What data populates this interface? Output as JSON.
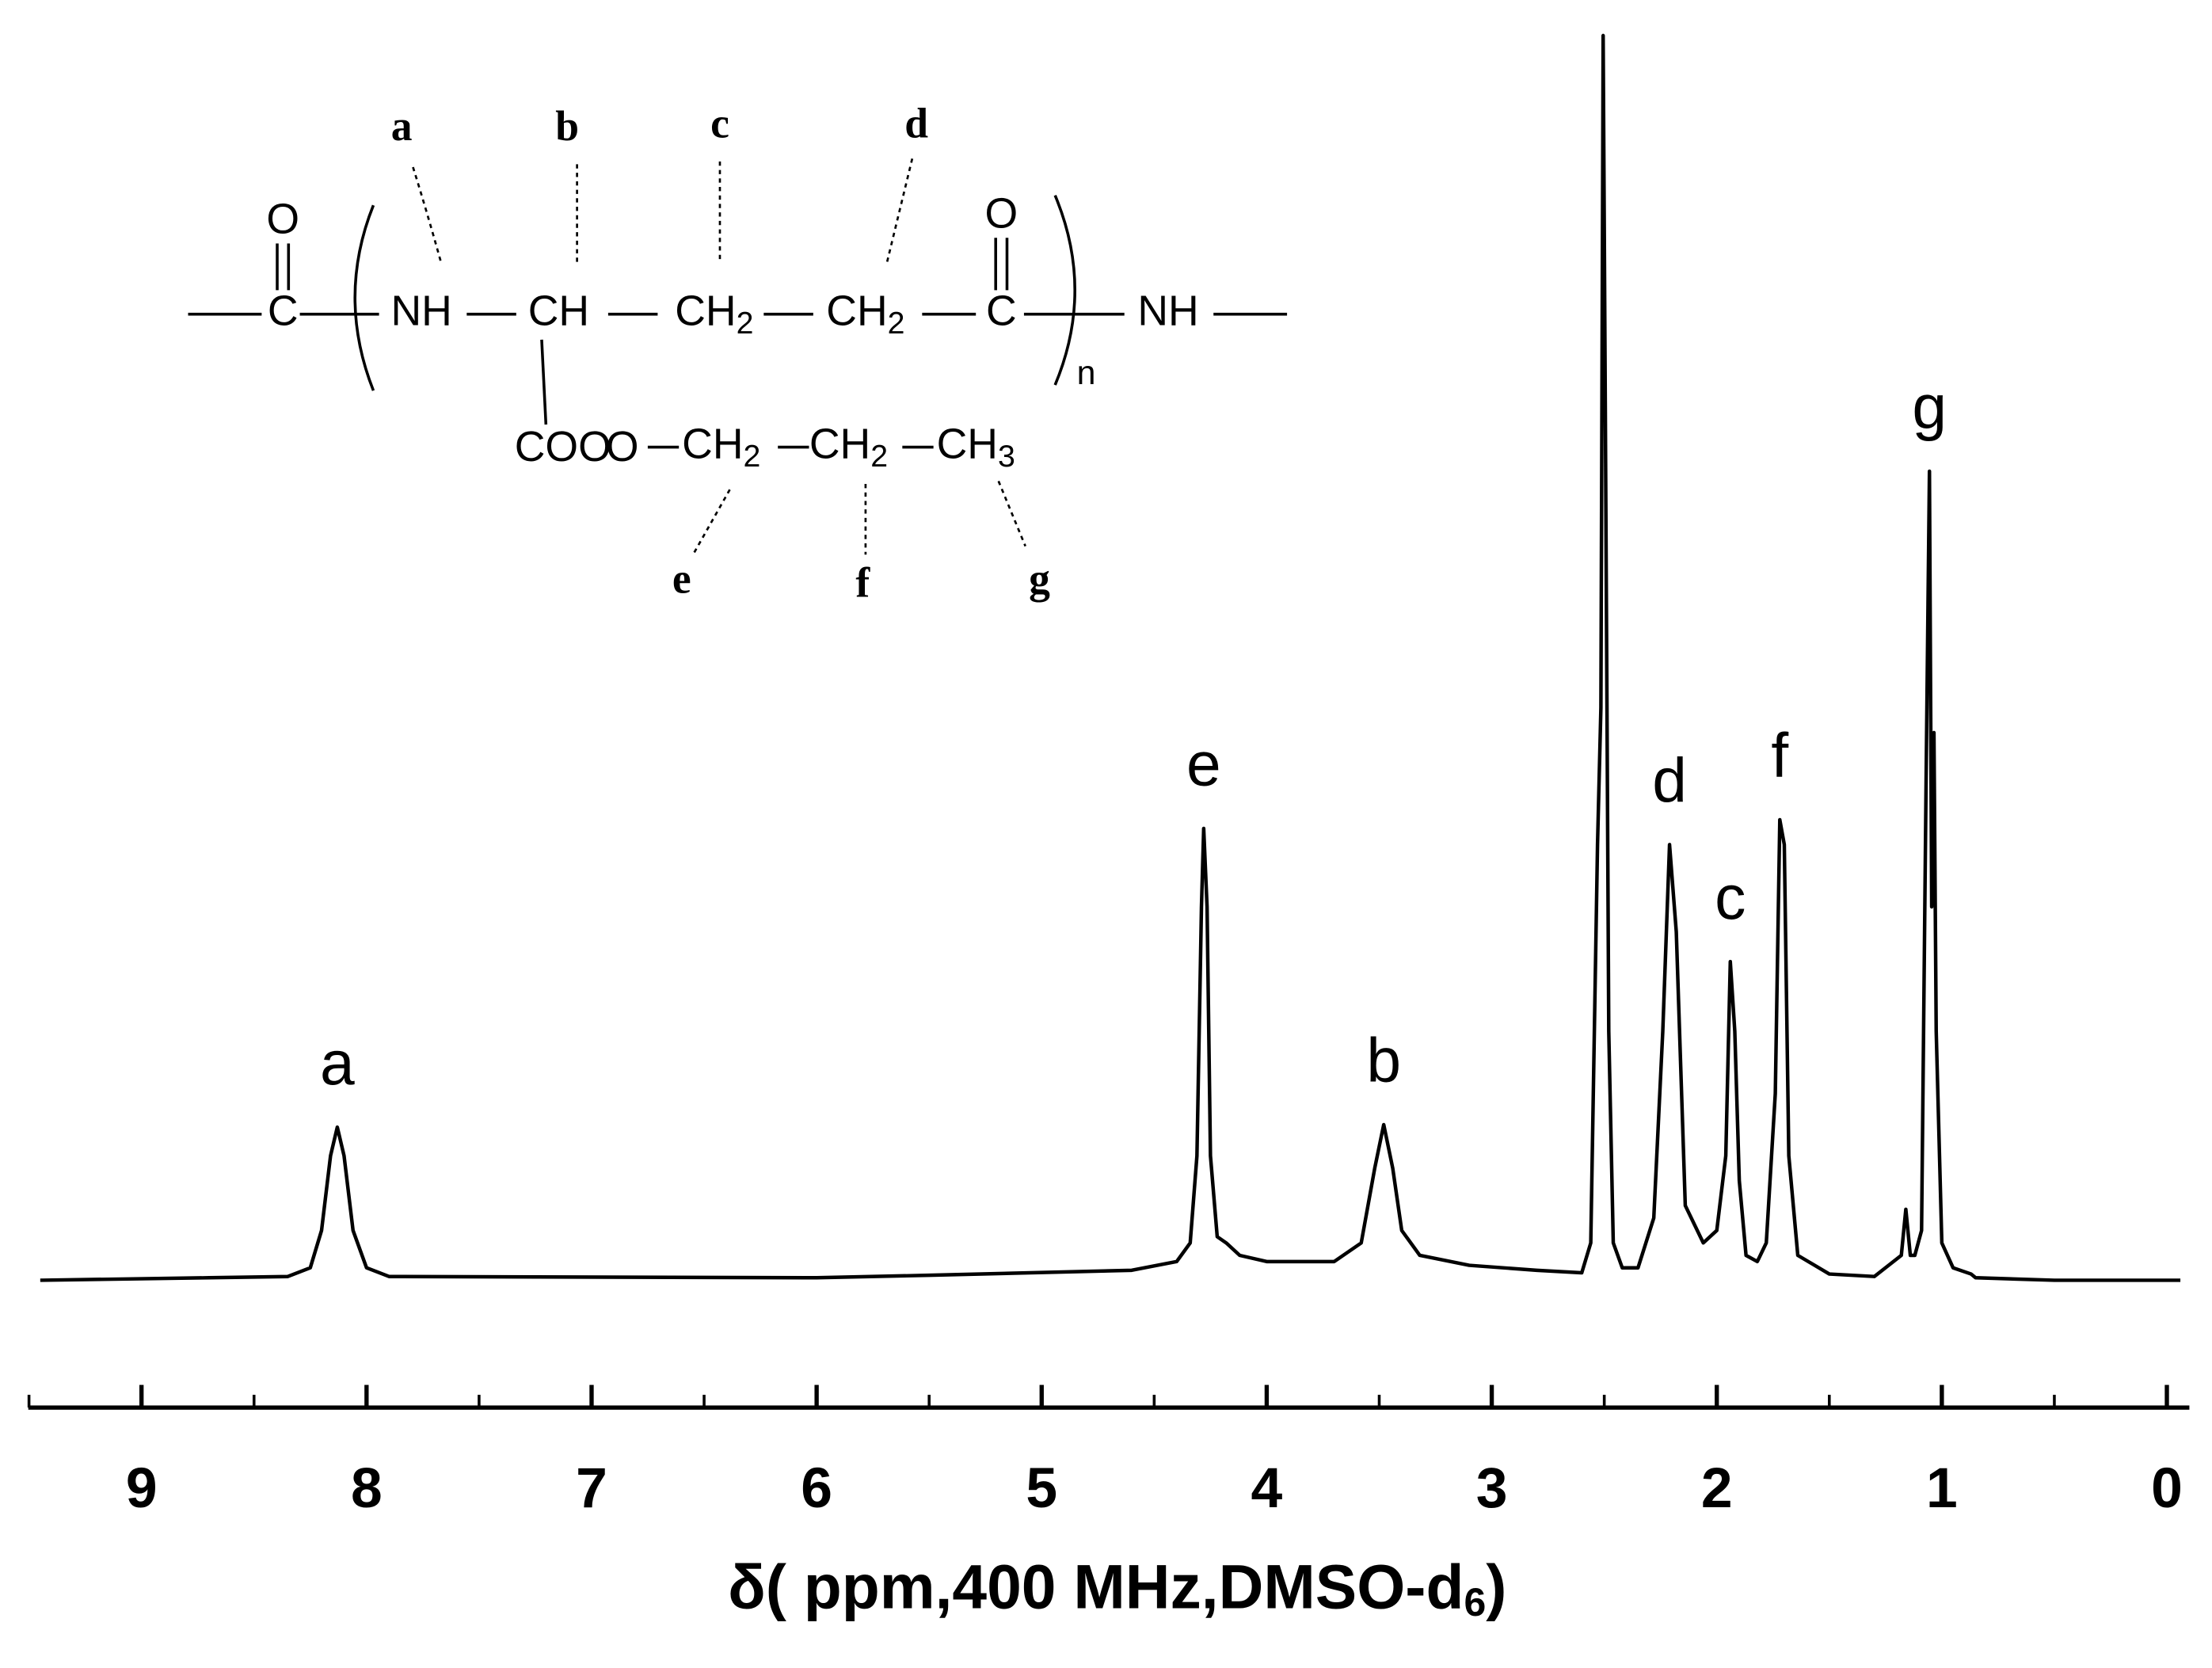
{
  "chart_data": {
    "type": "line",
    "x_label": {
      "main": "δ( ppm,400 MHz,DMSO-d",
      "sub": "6",
      "end": ")"
    },
    "x": [
      9.45,
      8.7,
      8.35,
      8.25,
      8.2,
      8.16,
      8.13,
      8.1,
      8.06,
      8.0,
      7.9,
      6.0,
      5.5,
      4.6,
      4.4,
      4.34,
      4.31,
      4.29,
      4.28,
      4.265,
      4.25,
      4.22,
      4.18,
      4.12,
      4.0,
      3.7,
      3.58,
      3.52,
      3.48,
      3.44,
      3.4,
      3.32,
      3.1,
      2.8,
      2.6,
      2.56,
      2.53,
      2.515,
      2.505,
      2.495,
      2.48,
      2.46,
      2.42,
      2.35,
      2.28,
      2.24,
      2.21,
      2.18,
      2.14,
      2.06,
      2.0,
      1.96,
      1.94,
      1.92,
      1.9,
      1.87,
      1.82,
      1.78,
      1.74,
      1.72,
      1.7,
      1.68,
      1.64,
      1.5,
      1.3,
      1.18,
      1.16,
      1.14,
      1.12,
      1.09,
      1.07,
      1.055,
      1.045,
      1.035,
      1.025,
      1.0,
      0.95,
      0.87,
      0.85,
      0.5,
      -0.06
    ],
    "values": [
      0,
      0.2,
      0.3,
      1,
      4,
      10,
      12.3,
      10,
      4,
      1,
      0.3,
      0.2,
      0.4,
      0.8,
      1.5,
      3,
      10,
      30,
      36.3,
      30,
      10,
      3.5,
      3,
      2,
      1.5,
      1.5,
      3,
      9,
      12.5,
      9,
      4,
      2,
      1.2,
      0.8,
      0.6,
      3,
      35,
      46,
      100,
      69,
      20,
      3,
      1,
      1,
      5,
      20,
      35,
      28,
      6,
      3,
      4,
      10,
      25.6,
      20,
      8,
      2,
      1.5,
      3,
      15,
      37,
      35,
      10,
      2,
      0.5,
      0.3,
      2,
      5.7,
      2,
      2,
      4,
      40,
      65,
      30,
      44,
      20,
      3,
      1,
      0.5,
      0.2,
      0,
      0
    ],
    "color": "#000000",
    "xlim": [
      9.5,
      -0.1
    ],
    "ylim": [
      -10,
      100
    ],
    "xticks": [
      9,
      8,
      7,
      6,
      5,
      4,
      3,
      2,
      1,
      0
    ],
    "xticks_minor": [
      9.5,
      8.5,
      7.5,
      6.5,
      5.5,
      4.5,
      3.5,
      2.5,
      1.5,
      0.5
    ],
    "peaks": [
      {
        "label": "a",
        "x": 8.13,
        "y": 12.3
      },
      {
        "label": "e",
        "x": 4.28,
        "y": 36.3
      },
      {
        "label": "b",
        "x": 3.48,
        "y": 12.5
      },
      {
        "label": "d",
        "x": 2.21,
        "y": 35
      },
      {
        "label": "c",
        "x": 1.94,
        "y": 25.6
      },
      {
        "label": "f",
        "x": 1.72,
        "y": 37
      },
      {
        "label": "g",
        "x": 1.055,
        "y": 65
      }
    ]
  },
  "structure": {
    "groups": [
      {
        "text": "O"
      },
      {
        "text": "C"
      },
      {
        "text": "NH"
      },
      {
        "text": "CH"
      },
      {
        "text": "CH",
        "sub": "2"
      },
      {
        "text": "CH",
        "sub": "2"
      },
      {
        "text": "O"
      },
      {
        "text": "C"
      },
      {
        "text": "NH"
      },
      {
        "text": "COO"
      },
      {
        "text": "O"
      },
      {
        "text": "CH",
        "sub": "2"
      },
      {
        "text": "CH",
        "sub": "2"
      },
      {
        "text": "CH",
        "sub": "3"
      }
    ],
    "repeat": "n",
    "letters": [
      "a",
      "b",
      "c",
      "d",
      "e",
      "f",
      "g"
    ]
  }
}
